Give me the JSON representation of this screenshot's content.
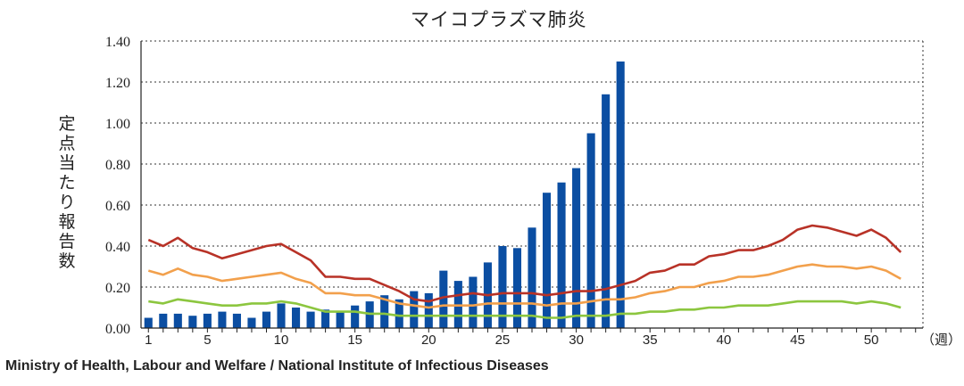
{
  "chart_data": {
    "type": "bar",
    "title": "マイコプラズマ肺炎",
    "ylabel": "定点当たり報告数",
    "xunit": "（週）",
    "ylim": [
      0,
      1.4
    ],
    "xlim": [
      1,
      53
    ],
    "yticks": [
      "0.00",
      "0.20",
      "0.40",
      "0.60",
      "0.80",
      "1.00",
      "1.20",
      "1.40"
    ],
    "xticks": [
      "1",
      "5",
      "10",
      "15",
      "20",
      "25",
      "30",
      "35",
      "40",
      "45",
      "50"
    ],
    "grid": "horizontal dotted",
    "bars": {
      "color": "#0b4ea2",
      "weeks": [
        1,
        2,
        3,
        4,
        5,
        6,
        7,
        8,
        9,
        10,
        11,
        12,
        13,
        14,
        15,
        16,
        17,
        18,
        19,
        20,
        21,
        22,
        23,
        24,
        25,
        26,
        27,
        28,
        29,
        30,
        31,
        32,
        33
      ],
      "values": [
        0.05,
        0.07,
        0.07,
        0.06,
        0.07,
        0.08,
        0.07,
        0.05,
        0.08,
        0.12,
        0.1,
        0.08,
        0.09,
        0.08,
        0.11,
        0.13,
        0.16,
        0.14,
        0.18,
        0.17,
        0.28,
        0.23,
        0.25,
        0.32,
        0.4,
        0.39,
        0.49,
        0.66,
        0.71,
        0.78,
        0.95,
        1.14,
        1.3
      ]
    },
    "series": [
      {
        "color": "#b83227",
        "values": [
          0.43,
          0.4,
          0.44,
          0.39,
          0.37,
          0.34,
          0.36,
          0.38,
          0.4,
          0.41,
          0.37,
          0.33,
          0.25,
          0.25,
          0.24,
          0.24,
          0.21,
          0.18,
          0.14,
          0.13,
          0.15,
          0.16,
          0.17,
          0.16,
          0.17,
          0.17,
          0.17,
          0.16,
          0.17,
          0.18,
          0.18,
          0.19,
          0.21,
          0.23,
          0.27,
          0.28,
          0.31,
          0.31,
          0.35,
          0.36,
          0.38,
          0.38,
          0.4,
          0.43,
          0.48,
          0.5,
          0.49,
          0.47,
          0.45,
          0.48,
          0.44,
          0.37
        ]
      },
      {
        "color": "#f2a04c",
        "values": [
          0.28,
          0.26,
          0.29,
          0.26,
          0.25,
          0.23,
          0.24,
          0.25,
          0.26,
          0.27,
          0.24,
          0.22,
          0.17,
          0.17,
          0.16,
          0.16,
          0.14,
          0.12,
          0.11,
          0.1,
          0.11,
          0.11,
          0.11,
          0.12,
          0.12,
          0.12,
          0.12,
          0.11,
          0.12,
          0.12,
          0.13,
          0.14,
          0.14,
          0.15,
          0.17,
          0.18,
          0.2,
          0.2,
          0.22,
          0.23,
          0.25,
          0.25,
          0.26,
          0.28,
          0.3,
          0.31,
          0.3,
          0.3,
          0.29,
          0.3,
          0.28,
          0.24
        ]
      },
      {
        "color": "#8cc63f",
        "values": [
          0.13,
          0.12,
          0.14,
          0.13,
          0.12,
          0.11,
          0.11,
          0.12,
          0.12,
          0.13,
          0.12,
          0.1,
          0.08,
          0.08,
          0.08,
          0.07,
          0.07,
          0.06,
          0.06,
          0.06,
          0.06,
          0.06,
          0.06,
          0.06,
          0.06,
          0.06,
          0.06,
          0.05,
          0.05,
          0.06,
          0.06,
          0.06,
          0.07,
          0.07,
          0.08,
          0.08,
          0.09,
          0.09,
          0.1,
          0.1,
          0.11,
          0.11,
          0.11,
          0.12,
          0.13,
          0.13,
          0.13,
          0.13,
          0.12,
          0.13,
          0.12,
          0.1
        ]
      }
    ]
  },
  "footer": {
    "source": "Ministry of Health, Labour and Welfare / National Institute of Infectious Diseases"
  }
}
